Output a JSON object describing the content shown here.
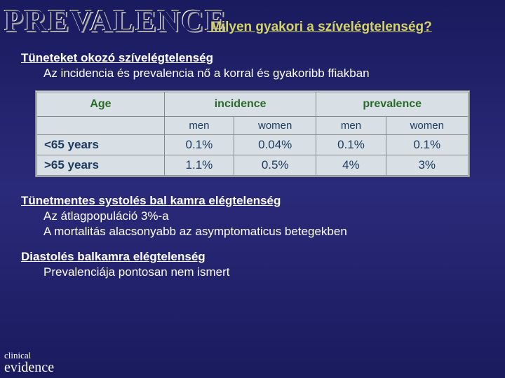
{
  "title": "PREVALENCE",
  "subtitle": "Milyen gyakori a szívelégtelenség?",
  "section1": {
    "head": "Tüneteket okozó szívelégtelenség",
    "line1": "Az incidencia és prevalencia nő a korral és gyakoribb ffiakban"
  },
  "table": {
    "h_age": "Age",
    "h_inc": "incidence",
    "h_prev": "prevalence",
    "s_men1": "men",
    "s_women1": "women",
    "s_men2": "men",
    "s_women2": "women",
    "r1_label": "<65 years",
    "r1": [
      "0.1%",
      "0.04%",
      "0.1%",
      "0.1%"
    ],
    "r2_label": ">65 years",
    "r2": [
      "1.1%",
      "0.5%",
      "4%",
      "3%"
    ]
  },
  "section2": {
    "head": "Tünetmentes systolés bal kamra elégtelenség",
    "line1": "Az átlagpopuláció 3%-a",
    "line2": "A mortalitás alacsonyabb az asymptomaticus betegekben"
  },
  "section3": {
    "head": "Diastolés balkamra elégtelenség",
    "line1": "Prevalenciája pontosan nem ismert"
  },
  "footer": {
    "l1": "clinical",
    "l2": "evidence"
  },
  "colors": {
    "bg_top": "#1a1a5e",
    "bg_mid": "#2a2a7a",
    "subtitle": "#d4d466",
    "table_bg": "#d8e0e6",
    "th_color": "#2a6a2a"
  }
}
